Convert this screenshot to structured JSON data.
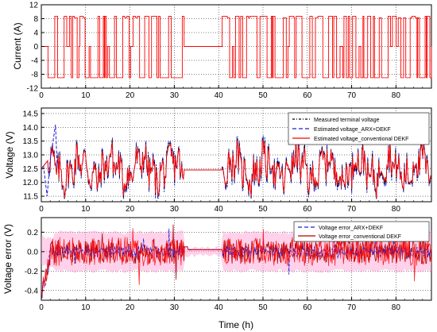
{
  "figure": {
    "xlabel": "Time (h)",
    "colors": {
      "current": "#ff0000",
      "measured": "#000000",
      "arx": "#1f1fd6",
      "conventional": "#ff0000",
      "error_conventional": "#b00000",
      "error_band": "#ff9ad0"
    }
  },
  "chart_data": [
    {
      "type": "line",
      "panel": "current",
      "xlabel": "",
      "ylabel": "Current (A)",
      "xlim": [
        0,
        88
      ],
      "ylim": [
        -12,
        12
      ],
      "xticks": [
        0,
        10,
        20,
        30,
        40,
        50,
        60,
        70,
        80
      ],
      "yticks": [
        -12,
        -8,
        -4,
        0,
        4,
        8,
        12
      ],
      "grid": true,
      "segments_active_h": [
        [
          1.5,
          32.2
        ],
        [
          40.8,
          88
        ]
      ],
      "rest_interval_h": [
        32.2,
        40.8
      ],
      "amplitude_A": [
        -9,
        8.7
      ],
      "series": [
        {
          "name": "",
          "description_values": "pulsed current profile alternating between about -9 A and +8.7 A; 0 A during rest"
        }
      ]
    },
    {
      "type": "line",
      "panel": "voltage",
      "xlabel": "",
      "ylabel": "Voltage (V)",
      "xlim": [
        0,
        88
      ],
      "ylim": [
        11.3,
        14.7
      ],
      "xticks": [
        0,
        10,
        20,
        30,
        40,
        50,
        60,
        70,
        80
      ],
      "yticks": [
        11.5,
        12.0,
        12.5,
        13.0,
        13.5,
        14.0,
        14.5
      ],
      "ytick_labels": [
        "11.5",
        "12.0",
        "12.5",
        "13.0",
        "13.5",
        "14.0",
        "14.5"
      ],
      "grid": true,
      "legend_position": "top-right",
      "rest_voltage_V": 12.45,
      "series": [
        {
          "name": "Measured terminal voltage"
        },
        {
          "name": "Estimated voltage_ARX+DEKF"
        },
        {
          "name": "Estimated voltage_conventional DEKF"
        }
      ]
    },
    {
      "type": "line",
      "panel": "error",
      "xlabel": "Time (h)",
      "ylabel": "Voltage error (V)",
      "xlim": [
        0,
        88
      ],
      "ylim": [
        -0.5,
        0.35
      ],
      "xticks": [
        0,
        10,
        20,
        30,
        40,
        50,
        60,
        70,
        80
      ],
      "yticks": [
        -0.4,
        -0.2,
        0.0,
        0.2
      ],
      "ytick_labels": [
        "-0.4",
        "-0.2",
        "0.0",
        "0.2"
      ],
      "grid": true,
      "legend_position": "top-right",
      "series": [
        {
          "name": "Voltage error_ARX+DEKF"
        },
        {
          "name": "Voltage error_conventional DEKF"
        }
      ]
    }
  ]
}
